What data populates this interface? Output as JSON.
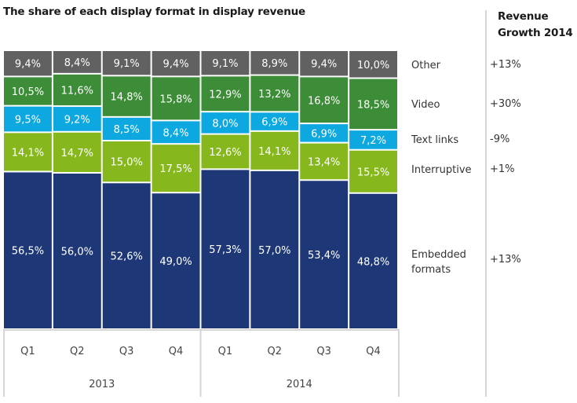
{
  "chart_data": {
    "type": "bar",
    "stacked": true,
    "title": "The share of each display format in display revenue",
    "xlabel": "",
    "ylabel": "",
    "ylim": [
      0,
      100
    ],
    "grid": false,
    "groups": [
      {
        "label": "2013",
        "categories": [
          "Q1",
          "Q2",
          "Q3",
          "Q4"
        ]
      },
      {
        "label": "2014",
        "categories": [
          "Q1",
          "Q2",
          "Q3",
          "Q4"
        ]
      }
    ],
    "categories": [
      "Q1 2013",
      "Q2 2013",
      "Q3 2013",
      "Q4 2013",
      "Q1 2014",
      "Q2 2014",
      "Q3 2014",
      "Q4 2014"
    ],
    "tick_labels": [
      "Q1",
      "Q2",
      "Q3",
      "Q4",
      "Q1",
      "Q2",
      "Q3",
      "Q4"
    ],
    "series": [
      {
        "name": "Embedded formats",
        "color": "#1e3877",
        "values": [
          56.5,
          56.0,
          52.6,
          49.0,
          57.3,
          57.0,
          53.4,
          48.8
        ],
        "labels": [
          "56,5%",
          "56,0%",
          "52,6%",
          "49,0%",
          "57,3%",
          "57,0%",
          "53,4%",
          "48,8%"
        ]
      },
      {
        "name": "Interruptive",
        "color": "#86b81d",
        "values": [
          14.1,
          14.7,
          15.0,
          17.5,
          12.6,
          14.1,
          13.4,
          15.5
        ],
        "labels": [
          "14,1%",
          "14,7%",
          "15,0%",
          "17,5%",
          "12,6%",
          "14,1%",
          "13,4%",
          "15,5%"
        ]
      },
      {
        "name": "Text links",
        "color": "#0ea8e0",
        "values": [
          9.5,
          9.2,
          8.5,
          8.4,
          8.0,
          6.9,
          6.9,
          7.2
        ],
        "labels": [
          "9,5%",
          "9,2%",
          "8,5%",
          "8,4%",
          "8,0%",
          "6,9%",
          "6,9%",
          "7,2%"
        ]
      },
      {
        "name": "Video",
        "color": "#3d8c37",
        "values": [
          10.5,
          11.6,
          14.8,
          15.8,
          12.9,
          13.2,
          16.8,
          18.5
        ],
        "labels": [
          "10,5%",
          "11,6%",
          "14,8%",
          "15,8%",
          "12,9%",
          "13,2%",
          "16,8%",
          "18,5%"
        ]
      },
      {
        "name": "Other",
        "color": "#616161",
        "values": [
          9.4,
          8.4,
          9.1,
          9.4,
          9.1,
          8.9,
          9.4,
          10.0
        ],
        "labels": [
          "9,4%",
          "8,4%",
          "9,1%",
          "9,4%",
          "9,1%",
          "8,9%",
          "9,4%",
          "10,0%"
        ]
      }
    ],
    "legend": {
      "placement": "right",
      "entries": [
        "Other",
        "Video",
        "Text links",
        "Interruptive",
        "Embedded formats"
      ]
    },
    "revenue_growth": {
      "title_line1": "Revenue",
      "title_line2": "Growth 2014",
      "entries": [
        {
          "format": "Other",
          "value": "+13%"
        },
        {
          "format": "Video",
          "value": "+30%"
        },
        {
          "format": "Text links",
          "value": "-9%"
        },
        {
          "format": "Interruptive",
          "value": "+1%"
        },
        {
          "format": "Embedded formats",
          "value": "+13%"
        }
      ]
    }
  },
  "legend_text": {
    "other": "Other",
    "video": "Video",
    "text_links": "Text links",
    "interruptive": "Interruptive",
    "embedded_line1": "Embedded",
    "embedded_line2": "formats"
  }
}
